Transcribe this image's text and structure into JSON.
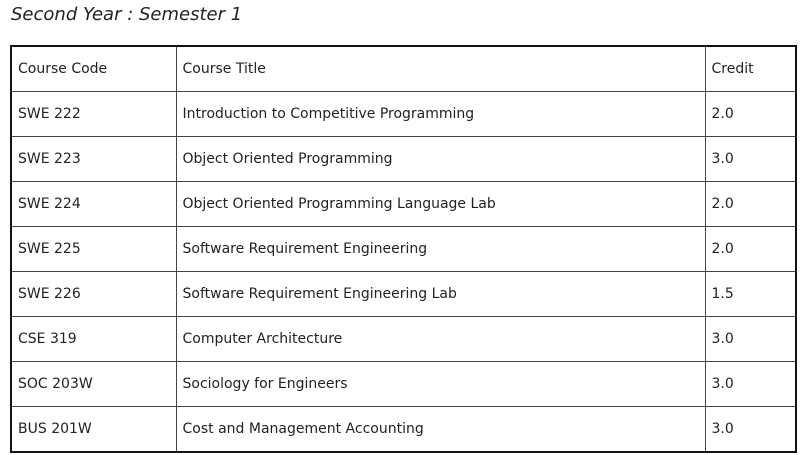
{
  "heading": "Second Year : Semester 1",
  "table": {
    "headers": {
      "code": "Course Code",
      "title": "Course Title",
      "credit": "Credit"
    },
    "rows": [
      {
        "code": "SWE 222",
        "title": "Introduction to Competitive Programming",
        "credit": "2.0"
      },
      {
        "code": "SWE 223",
        "title": "Object Oriented Programming",
        "credit": "3.0"
      },
      {
        "code": "SWE 224",
        "title": "Object Oriented Programming Language Lab",
        "credit": "2.0"
      },
      {
        "code": "SWE 225",
        "title": "Software Requirement Engineering",
        "credit": "2.0"
      },
      {
        "code": "SWE 226",
        "title": "Software Requirement Engineering Lab",
        "credit": "1.5"
      },
      {
        "code": "CSE 319",
        "title": "Computer Architecture",
        "credit": "3.0"
      },
      {
        "code": "SOC 203W",
        "title": "Sociology for Engineers",
        "credit": "3.0"
      },
      {
        "code": "BUS 201W",
        "title": "Cost and Management Accounting",
        "credit": "3.0"
      }
    ]
  }
}
